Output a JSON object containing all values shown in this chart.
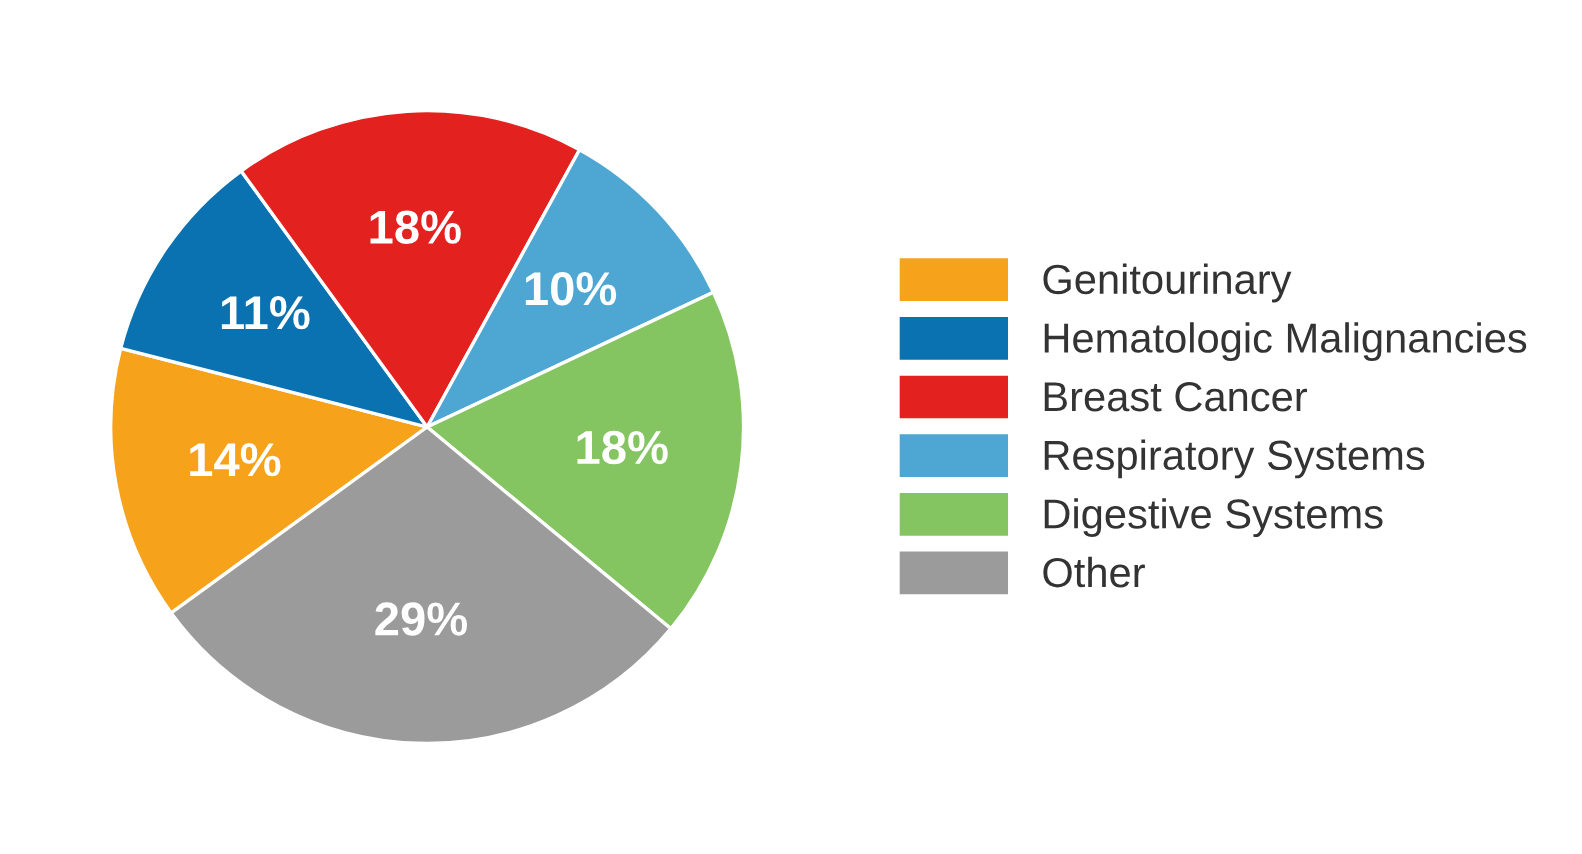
{
  "chart_data": {
    "type": "pie",
    "categories": [
      "Genitourinary",
      "Hematologic Malignancies",
      "Breast Cancer",
      "Respiratory Systems",
      "Digestive Systems",
      "Other"
    ],
    "values": [
      14,
      11,
      18,
      10,
      18,
      29
    ],
    "colors": [
      "#f7a21b",
      "#0a72b0",
      "#e3211e",
      "#4ea6d3",
      "#84c562",
      "#9b9b9b"
    ],
    "value_labels": [
      "14%",
      "11%",
      "18%",
      "10%",
      "18%",
      "29%"
    ],
    "legend": "right"
  }
}
